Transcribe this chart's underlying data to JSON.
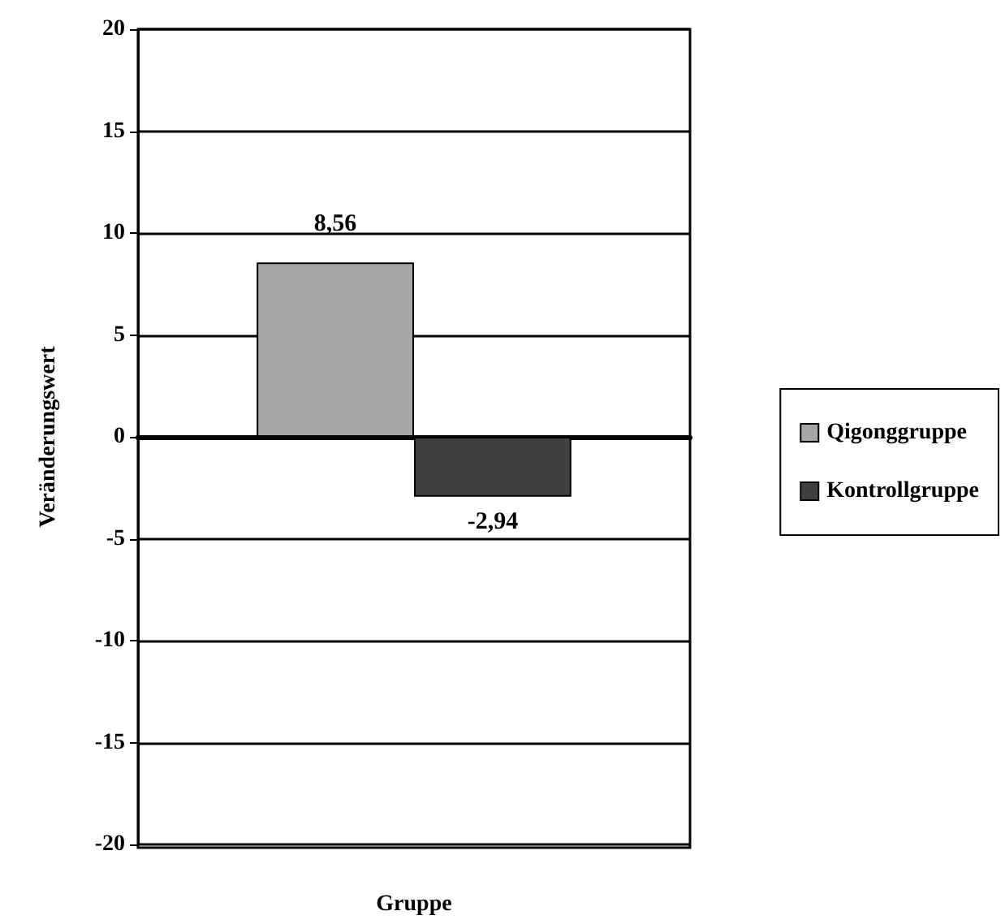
{
  "chart_data": {
    "type": "bar",
    "xlabel": "Gruppe",
    "ylabel": "Veränderungswert",
    "categories": [
      null
    ],
    "series": [
      {
        "name": "Qigonggruppe",
        "color": "#a6a6a6",
        "values": [
          8.56
        ],
        "value_labels": [
          "8,56"
        ]
      },
      {
        "name": "Kontrollgruppe",
        "color": "#404040",
        "values": [
          -2.94
        ],
        "value_labels": [
          "-2,94"
        ]
      }
    ],
    "ylim": [
      -20,
      20
    ],
    "yticks": [
      -20,
      -15,
      -10,
      -5,
      0,
      5,
      10,
      15,
      20
    ],
    "grid": "y",
    "legend": "right"
  }
}
